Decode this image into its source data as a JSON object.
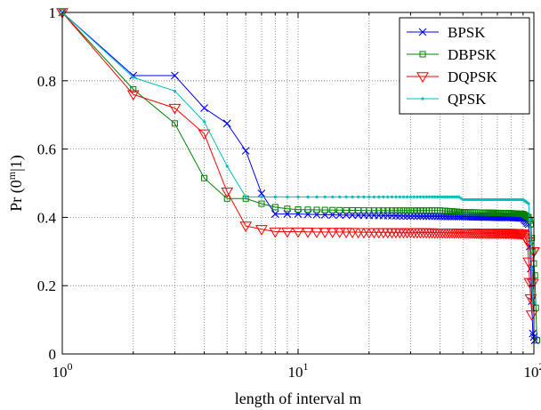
{
  "chart_data": {
    "type": "line",
    "xscale": "log",
    "xlim": [
      1,
      100
    ],
    "ylim": [
      0,
      1
    ],
    "xlabel": "length of interval m",
    "ylabel_main": "Pr (0",
    "ylabel_sup": "m",
    "ylabel_end": "|1)",
    "grid": {
      "x": true,
      "y": true,
      "x_minor": true
    },
    "legend_position": "top-right",
    "x_ticks": [
      {
        "value": 1,
        "base": "10",
        "exp": "0"
      },
      {
        "value": 10,
        "base": "10",
        "exp": "1"
      },
      {
        "value": 100,
        "base": "10",
        "exp": "2"
      }
    ],
    "y_ticks": [
      {
        "value": 0,
        "label": "0"
      },
      {
        "value": 0.2,
        "label": "0.2"
      },
      {
        "value": 0.4,
        "label": "0.4"
      },
      {
        "value": 0.6,
        "label": "0.6"
      },
      {
        "value": 0.8,
        "label": "0.8"
      },
      {
        "value": 1,
        "label": "1"
      }
    ],
    "series": [
      {
        "name": "BPSK",
        "color": "#0000ff",
        "marker": "x",
        "points": [
          [
            1,
            1
          ],
          [
            2,
            0.815
          ],
          [
            3,
            0.815
          ],
          [
            4,
            0.72
          ],
          [
            5,
            0.675
          ],
          [
            6,
            0.595
          ],
          [
            7,
            0.47
          ],
          [
            8,
            0.41
          ],
          [
            9,
            0.41
          ],
          [
            10,
            0.41
          ],
          [
            12,
            0.408
          ],
          [
            15,
            0.407
          ],
          [
            20,
            0.406
          ],
          [
            25,
            0.405
          ],
          [
            30,
            0.404
          ],
          [
            40,
            0.403
          ],
          [
            50,
            0.402
          ],
          [
            60,
            0.401
          ],
          [
            70,
            0.4
          ],
          [
            80,
            0.4
          ],
          [
            90,
            0.398
          ],
          [
            95,
            0.38
          ],
          [
            97,
            0.25
          ],
          [
            99,
            0.06
          ],
          [
            101,
            0.04
          ]
        ]
      },
      {
        "name": "DBPSK",
        "color": "#008000",
        "marker": "square",
        "points": [
          [
            1,
            1
          ],
          [
            2,
            0.775
          ],
          [
            3,
            0.675
          ],
          [
            4,
            0.515
          ],
          [
            5,
            0.455
          ],
          [
            6,
            0.455
          ],
          [
            7,
            0.44
          ],
          [
            8,
            0.43
          ],
          [
            9,
            0.425
          ],
          [
            10,
            0.423
          ],
          [
            12,
            0.422
          ],
          [
            15,
            0.421
          ],
          [
            20,
            0.42
          ],
          [
            25,
            0.42
          ],
          [
            30,
            0.42
          ],
          [
            40,
            0.42
          ],
          [
            50,
            0.415
          ],
          [
            60,
            0.414
          ],
          [
            70,
            0.413
          ],
          [
            80,
            0.412
          ],
          [
            90,
            0.41
          ],
          [
            95,
            0.4
          ],
          [
            97,
            0.38
          ],
          [
            99,
            0.3
          ],
          [
            101,
            0.23
          ],
          [
            103,
            0.04
          ]
        ]
      },
      {
        "name": "DQPSK",
        "color": "#ff0000",
        "marker": "triangle-down",
        "points": [
          [
            1,
            1
          ],
          [
            2,
            0.76
          ],
          [
            3,
            0.72
          ],
          [
            4,
            0.645
          ],
          [
            5,
            0.475
          ],
          [
            6,
            0.375
          ],
          [
            7,
            0.365
          ],
          [
            8,
            0.358
          ],
          [
            9,
            0.358
          ],
          [
            10,
            0.358
          ],
          [
            12,
            0.357
          ],
          [
            15,
            0.357
          ],
          [
            20,
            0.356
          ],
          [
            25,
            0.356
          ],
          [
            30,
            0.356
          ],
          [
            40,
            0.355
          ],
          [
            50,
            0.355
          ],
          [
            60,
            0.354
          ],
          [
            70,
            0.354
          ],
          [
            80,
            0.354
          ],
          [
            90,
            0.352
          ],
          [
            94,
            0.33
          ],
          [
            96,
            0.21
          ],
          [
            98,
            0.115
          ],
          [
            100,
            0.3
          ]
        ]
      },
      {
        "name": "QPSK",
        "color": "#00bfbf",
        "marker": "dot",
        "points": [
          [
            1,
            1
          ],
          [
            2,
            0.81
          ],
          [
            3,
            0.77
          ],
          [
            4,
            0.68
          ],
          [
            5,
            0.55
          ],
          [
            6,
            0.46
          ],
          [
            7,
            0.46
          ],
          [
            8,
            0.46
          ],
          [
            10,
            0.46
          ],
          [
            15,
            0.46
          ],
          [
            20,
            0.46
          ],
          [
            30,
            0.46
          ],
          [
            40,
            0.46
          ],
          [
            48,
            0.46
          ],
          [
            50,
            0.452
          ],
          [
            60,
            0.452
          ],
          [
            70,
            0.452
          ],
          [
            80,
            0.452
          ],
          [
            90,
            0.452
          ],
          [
            95,
            0.44
          ],
          [
            97,
            0.35
          ],
          [
            99,
            0.15
          ],
          [
            101,
            0.15
          ]
        ]
      }
    ]
  }
}
